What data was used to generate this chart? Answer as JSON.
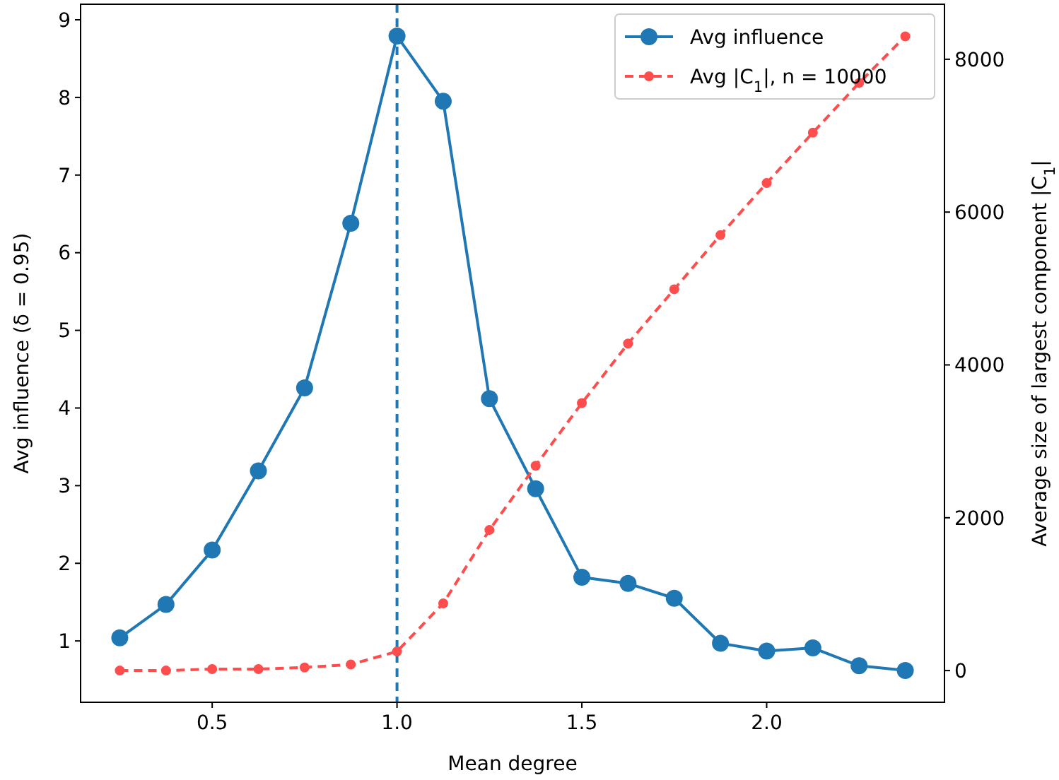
{
  "chart_data": {
    "type": "line",
    "xlabel": "Mean degree",
    "ylabel": "Avg influence (δ = 0.95)",
    "y2label": "Average size of largest component |C$_{1}$|",
    "x": [
      0.25,
      0.375,
      0.5,
      0.625,
      0.75,
      0.875,
      1.0,
      1.125,
      1.25,
      1.375,
      1.5,
      1.625,
      1.75,
      1.875,
      2.0,
      2.125,
      2.25,
      2.375
    ],
    "series": [
      {
        "name": "Avg influence",
        "color": "#1f77b4",
        "marker": "circle",
        "line_style": "solid",
        "values": [
          1.04,
          1.47,
          2.17,
          3.19,
          4.26,
          6.38,
          8.79,
          7.95,
          4.12,
          2.96,
          1.82,
          1.74,
          1.55,
          0.97,
          0.87,
          0.91,
          0.68,
          0.62
        ]
      },
      {
        "name": "Avg |C$_{1}$|, n = 10000",
        "color": "#ff4c4c",
        "marker": "circle",
        "line_style": "dashed",
        "axis": "y2",
        "values": [
          0,
          0,
          20,
          20,
          40,
          80,
          250,
          880,
          1840,
          2680,
          3500,
          4280,
          4990,
          5700,
          6380,
          7040,
          7690,
          8300
        ]
      }
    ],
    "xlim": [
      0.144,
      2.481
    ],
    "xticks": [
      {
        "value": 0.5,
        "label": "0.5"
      },
      {
        "value": 1.0,
        "label": "1.0"
      },
      {
        "value": 1.5,
        "label": "1.5"
      },
      {
        "value": 2.0,
        "label": "2.0"
      }
    ],
    "ylim": [
      0.21,
      9.2
    ],
    "yticks": [
      1,
      2,
      3,
      4,
      5,
      6,
      7,
      8,
      9
    ],
    "y2lim": [
      -415,
      8720
    ],
    "y2ticks": [
      0,
      2000,
      4000,
      6000,
      8000
    ],
    "ref_lines": [
      {
        "axis": "x",
        "value": 1.0,
        "label": null,
        "color": "#1f77b4",
        "line_style": "dashed"
      }
    ],
    "legend": "top right",
    "grid": false
  }
}
